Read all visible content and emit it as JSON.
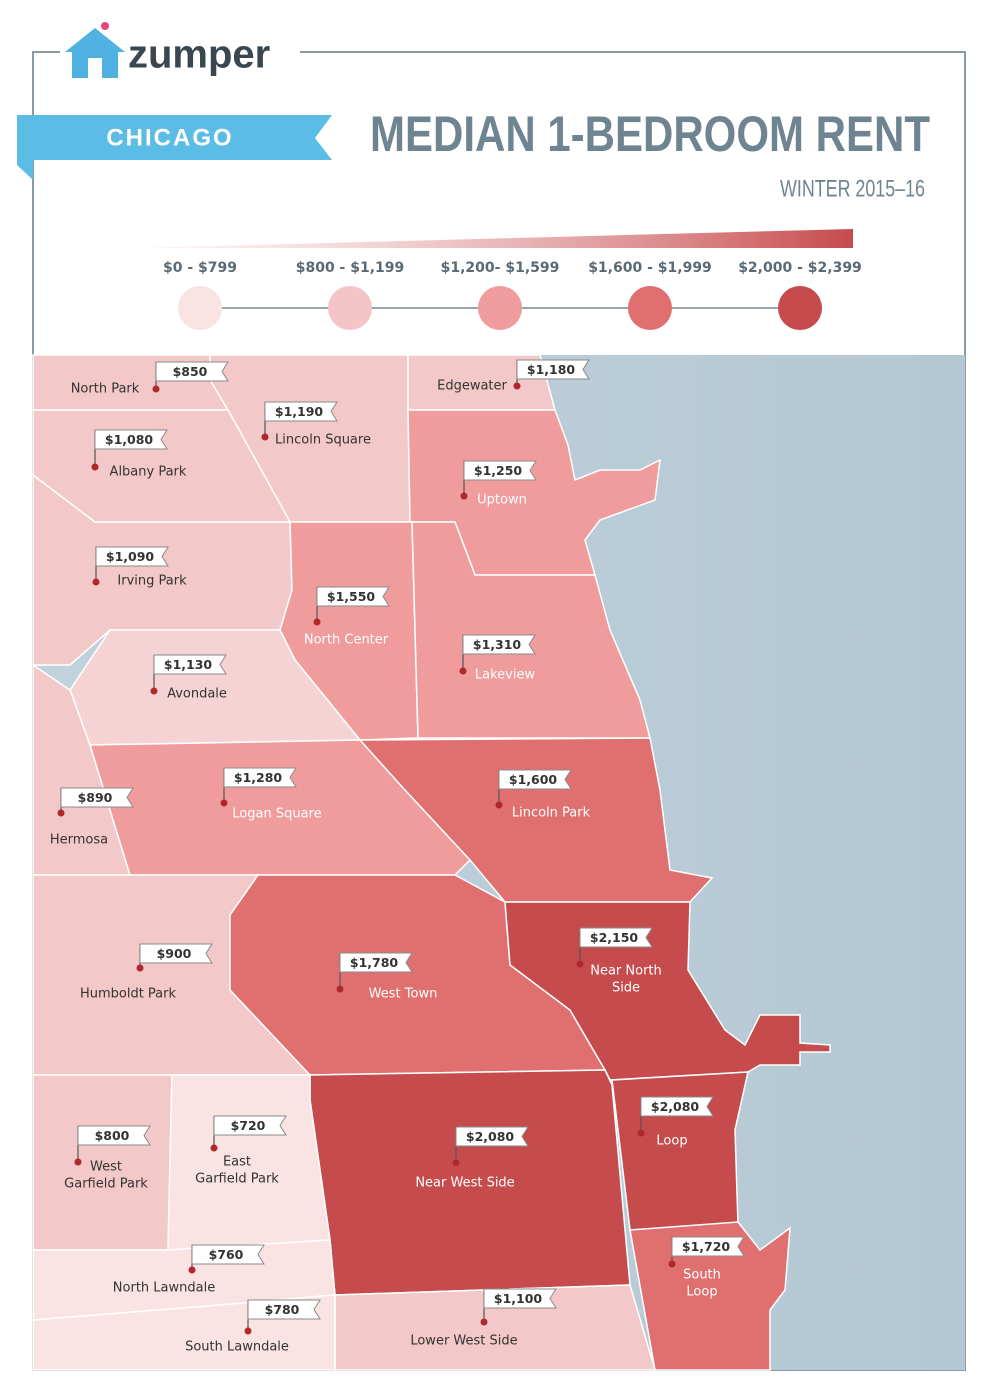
{
  "header": {
    "logo": "zumper",
    "city": "CHICAGO",
    "title": "MEDIAN 1-BEDROOM RENT",
    "subtitle": "WINTER 2015–16"
  },
  "legend": [
    "$0 - $799",
    "$800 - $1,199",
    "$1,200- $1,599",
    "$1,600 - $1,999",
    "$2,000 - $2,399"
  ],
  "neighborhoods": [
    {
      "name": [
        "North Park"
      ],
      "rent": "$850"
    },
    {
      "name": [
        "Lincoln Square"
      ],
      "rent": "$1,190"
    },
    {
      "name": [
        "Edgewater"
      ],
      "rent": "$1,180"
    },
    {
      "name": [
        "Albany Park"
      ],
      "rent": "$1,080"
    },
    {
      "name": [
        "Uptown"
      ],
      "rent": "$1,250"
    },
    {
      "name": [
        "Irving Park"
      ],
      "rent": "$1,090"
    },
    {
      "name": [
        "North Center"
      ],
      "rent": "$1,550"
    },
    {
      "name": [
        "Lakeview"
      ],
      "rent": "$1,310"
    },
    {
      "name": [
        "Avondale"
      ],
      "rent": "$1,130"
    },
    {
      "name": [
        "Hermosa"
      ],
      "rent": "$890"
    },
    {
      "name": [
        "Logan Square"
      ],
      "rent": "$1,280"
    },
    {
      "name": [
        "Lincoln Park"
      ],
      "rent": "$1,600"
    },
    {
      "name": [
        "Humboldt Park"
      ],
      "rent": "$900"
    },
    {
      "name": [
        "West Town"
      ],
      "rent": "$1,780"
    },
    {
      "name": [
        "Near North",
        "Side"
      ],
      "rent": "$2,150"
    },
    {
      "name": [
        "Near West Side"
      ],
      "rent": "$2,080"
    },
    {
      "name": [
        "Loop"
      ],
      "rent": "$2,080"
    },
    {
      "name": [
        "South",
        "Loop"
      ],
      "rent": "$1,720"
    },
    {
      "name": [
        "West",
        "Garfield Park"
      ],
      "rent": "$800"
    },
    {
      "name": [
        "East",
        "Garfield Park"
      ],
      "rent": "$720"
    },
    {
      "name": [
        "North Lawndale"
      ],
      "rent": "$760"
    },
    {
      "name": [
        "South Lawndale"
      ],
      "rent": "$780"
    },
    {
      "name": [
        "Lower West Side"
      ],
      "rent": "$1,100"
    }
  ]
}
